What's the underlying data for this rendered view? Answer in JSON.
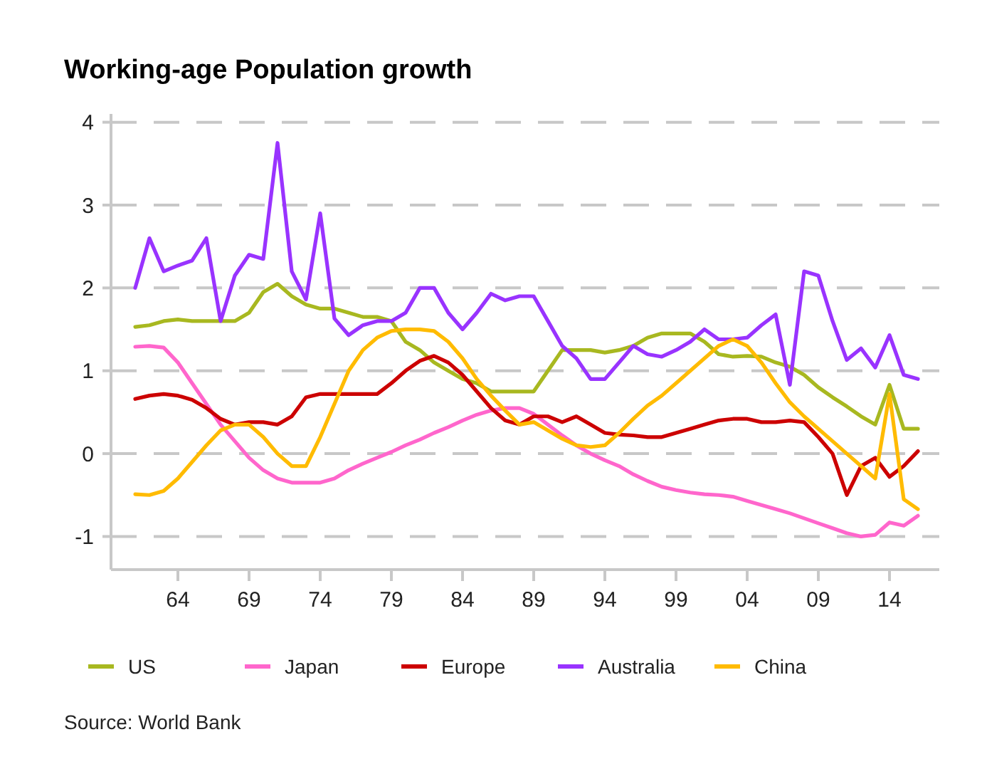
{
  "chart_data": {
    "type": "line",
    "title": "Working-age Population growth",
    "x": [
      1961,
      1962,
      1963,
      1964,
      1965,
      1966,
      1967,
      1968,
      1969,
      1970,
      1971,
      1972,
      1973,
      1974,
      1975,
      1976,
      1977,
      1978,
      1979,
      1980,
      1981,
      1982,
      1983,
      1984,
      1985,
      1986,
      1987,
      1988,
      1989,
      1990,
      1991,
      1992,
      1993,
      1994,
      1995,
      1996,
      1997,
      1998,
      1999,
      2000,
      2001,
      2002,
      2003,
      2004,
      2005,
      2006,
      2007,
      2008,
      2009,
      2010,
      2011,
      2012,
      2013,
      2014,
      2015,
      2016
    ],
    "series": [
      {
        "name": "US",
        "color": "#a8b820",
        "values": [
          1.53,
          1.55,
          1.6,
          1.62,
          1.6,
          1.6,
          1.6,
          1.6,
          1.7,
          1.95,
          2.05,
          1.9,
          1.8,
          1.75,
          1.75,
          1.7,
          1.65,
          1.65,
          1.6,
          1.35,
          1.25,
          1.1,
          1.0,
          0.9,
          0.85,
          0.75,
          0.75,
          0.75,
          0.75,
          1.0,
          1.25,
          1.25,
          1.25,
          1.22,
          1.25,
          1.3,
          1.4,
          1.45,
          1.45,
          1.45,
          1.35,
          1.2,
          1.17,
          1.18,
          1.17,
          1.1,
          1.05,
          0.95,
          0.8,
          0.68,
          0.57,
          0.45,
          0.35,
          0.83,
          0.3,
          0.3
        ]
      },
      {
        "name": "Japan",
        "color": "#ff66cc",
        "values": [
          1.29,
          1.3,
          1.28,
          1.1,
          0.85,
          0.6,
          0.35,
          0.15,
          -0.05,
          -0.2,
          -0.3,
          -0.35,
          -0.35,
          -0.35,
          -0.3,
          -0.2,
          -0.12,
          -0.05,
          0.02,
          0.1,
          0.17,
          0.25,
          0.32,
          0.4,
          0.47,
          0.52,
          0.55,
          0.55,
          0.48,
          0.35,
          0.22,
          0.1,
          0.0,
          -0.08,
          -0.15,
          -0.25,
          -0.33,
          -0.4,
          -0.44,
          -0.47,
          -0.49,
          -0.5,
          -0.52,
          -0.57,
          -0.62,
          -0.67,
          -0.72,
          -0.78,
          -0.84,
          -0.9,
          -0.96,
          -1.0,
          -0.98,
          -0.83,
          -0.87,
          -0.75
        ]
      },
      {
        "name": "Europe",
        "color": "#cc0000",
        "values": [
          0.66,
          0.7,
          0.72,
          0.7,
          0.65,
          0.55,
          0.42,
          0.35,
          0.38,
          0.38,
          0.35,
          0.45,
          0.68,
          0.72,
          0.72,
          0.72,
          0.72,
          0.72,
          0.85,
          1.0,
          1.12,
          1.18,
          1.1,
          0.95,
          0.75,
          0.55,
          0.4,
          0.35,
          0.45,
          0.45,
          0.38,
          0.45,
          0.35,
          0.25,
          0.23,
          0.22,
          0.2,
          0.2,
          0.25,
          0.3,
          0.35,
          0.4,
          0.42,
          0.42,
          0.38,
          0.38,
          0.4,
          0.38,
          0.2,
          0.0,
          -0.5,
          -0.15,
          -0.05,
          -0.28,
          -0.15,
          0.03
        ]
      },
      {
        "name": "Australia",
        "color": "#9933ff",
        "values": [
          2.0,
          2.6,
          2.2,
          2.27,
          2.33,
          2.6,
          1.6,
          2.15,
          2.4,
          2.35,
          3.75,
          2.2,
          1.86,
          2.9,
          1.63,
          1.43,
          1.55,
          1.6,
          1.6,
          1.7,
          2.0,
          2.0,
          1.7,
          1.5,
          1.7,
          1.93,
          1.85,
          1.9,
          1.9,
          1.6,
          1.3,
          1.15,
          0.9,
          0.9,
          1.1,
          1.3,
          1.2,
          1.17,
          1.25,
          1.35,
          1.5,
          1.38,
          1.38,
          1.4,
          1.55,
          1.68,
          0.83,
          2.2,
          2.15,
          1.6,
          1.13,
          1.27,
          1.04,
          1.43,
          0.95,
          0.9
        ]
      },
      {
        "name": "China",
        "color": "#ffbb00",
        "values": [
          -0.49,
          -0.5,
          -0.45,
          -0.3,
          -0.1,
          0.1,
          0.28,
          0.35,
          0.35,
          0.2,
          0.0,
          -0.15,
          -0.15,
          0.2,
          0.6,
          1.0,
          1.25,
          1.4,
          1.48,
          1.5,
          1.5,
          1.48,
          1.35,
          1.15,
          0.9,
          0.7,
          0.52,
          0.35,
          0.38,
          0.28,
          0.18,
          0.1,
          0.08,
          0.1,
          0.25,
          0.42,
          0.58,
          0.7,
          0.85,
          1.0,
          1.15,
          1.3,
          1.38,
          1.3,
          1.1,
          0.85,
          0.62,
          0.45,
          0.3,
          0.15,
          0.0,
          -0.15,
          -0.3,
          0.72,
          -0.55,
          -0.67
        ]
      }
    ],
    "xlim": [
      1959.3,
      2017.5
    ],
    "xticks": [
      {
        "value": 1964,
        "label": "64"
      },
      {
        "value": 1969,
        "label": "69"
      },
      {
        "value": 1974,
        "label": "74"
      },
      {
        "value": 1979,
        "label": "79"
      },
      {
        "value": 1984,
        "label": "84"
      },
      {
        "value": 1989,
        "label": "89"
      },
      {
        "value": 1994,
        "label": "94"
      },
      {
        "value": 1999,
        "label": "99"
      },
      {
        "value": 2004,
        "label": "04"
      },
      {
        "value": 2009,
        "label": "09"
      },
      {
        "value": 2014,
        "label": "14"
      }
    ],
    "ylim": [
      -1.4,
      4.1
    ],
    "yticks": [
      -1,
      0,
      1,
      2,
      3,
      4
    ],
    "grid": "y",
    "legend": "bottom",
    "marker": "none",
    "line_style": "solid",
    "annotations": [
      "Source: World Bank"
    ]
  }
}
